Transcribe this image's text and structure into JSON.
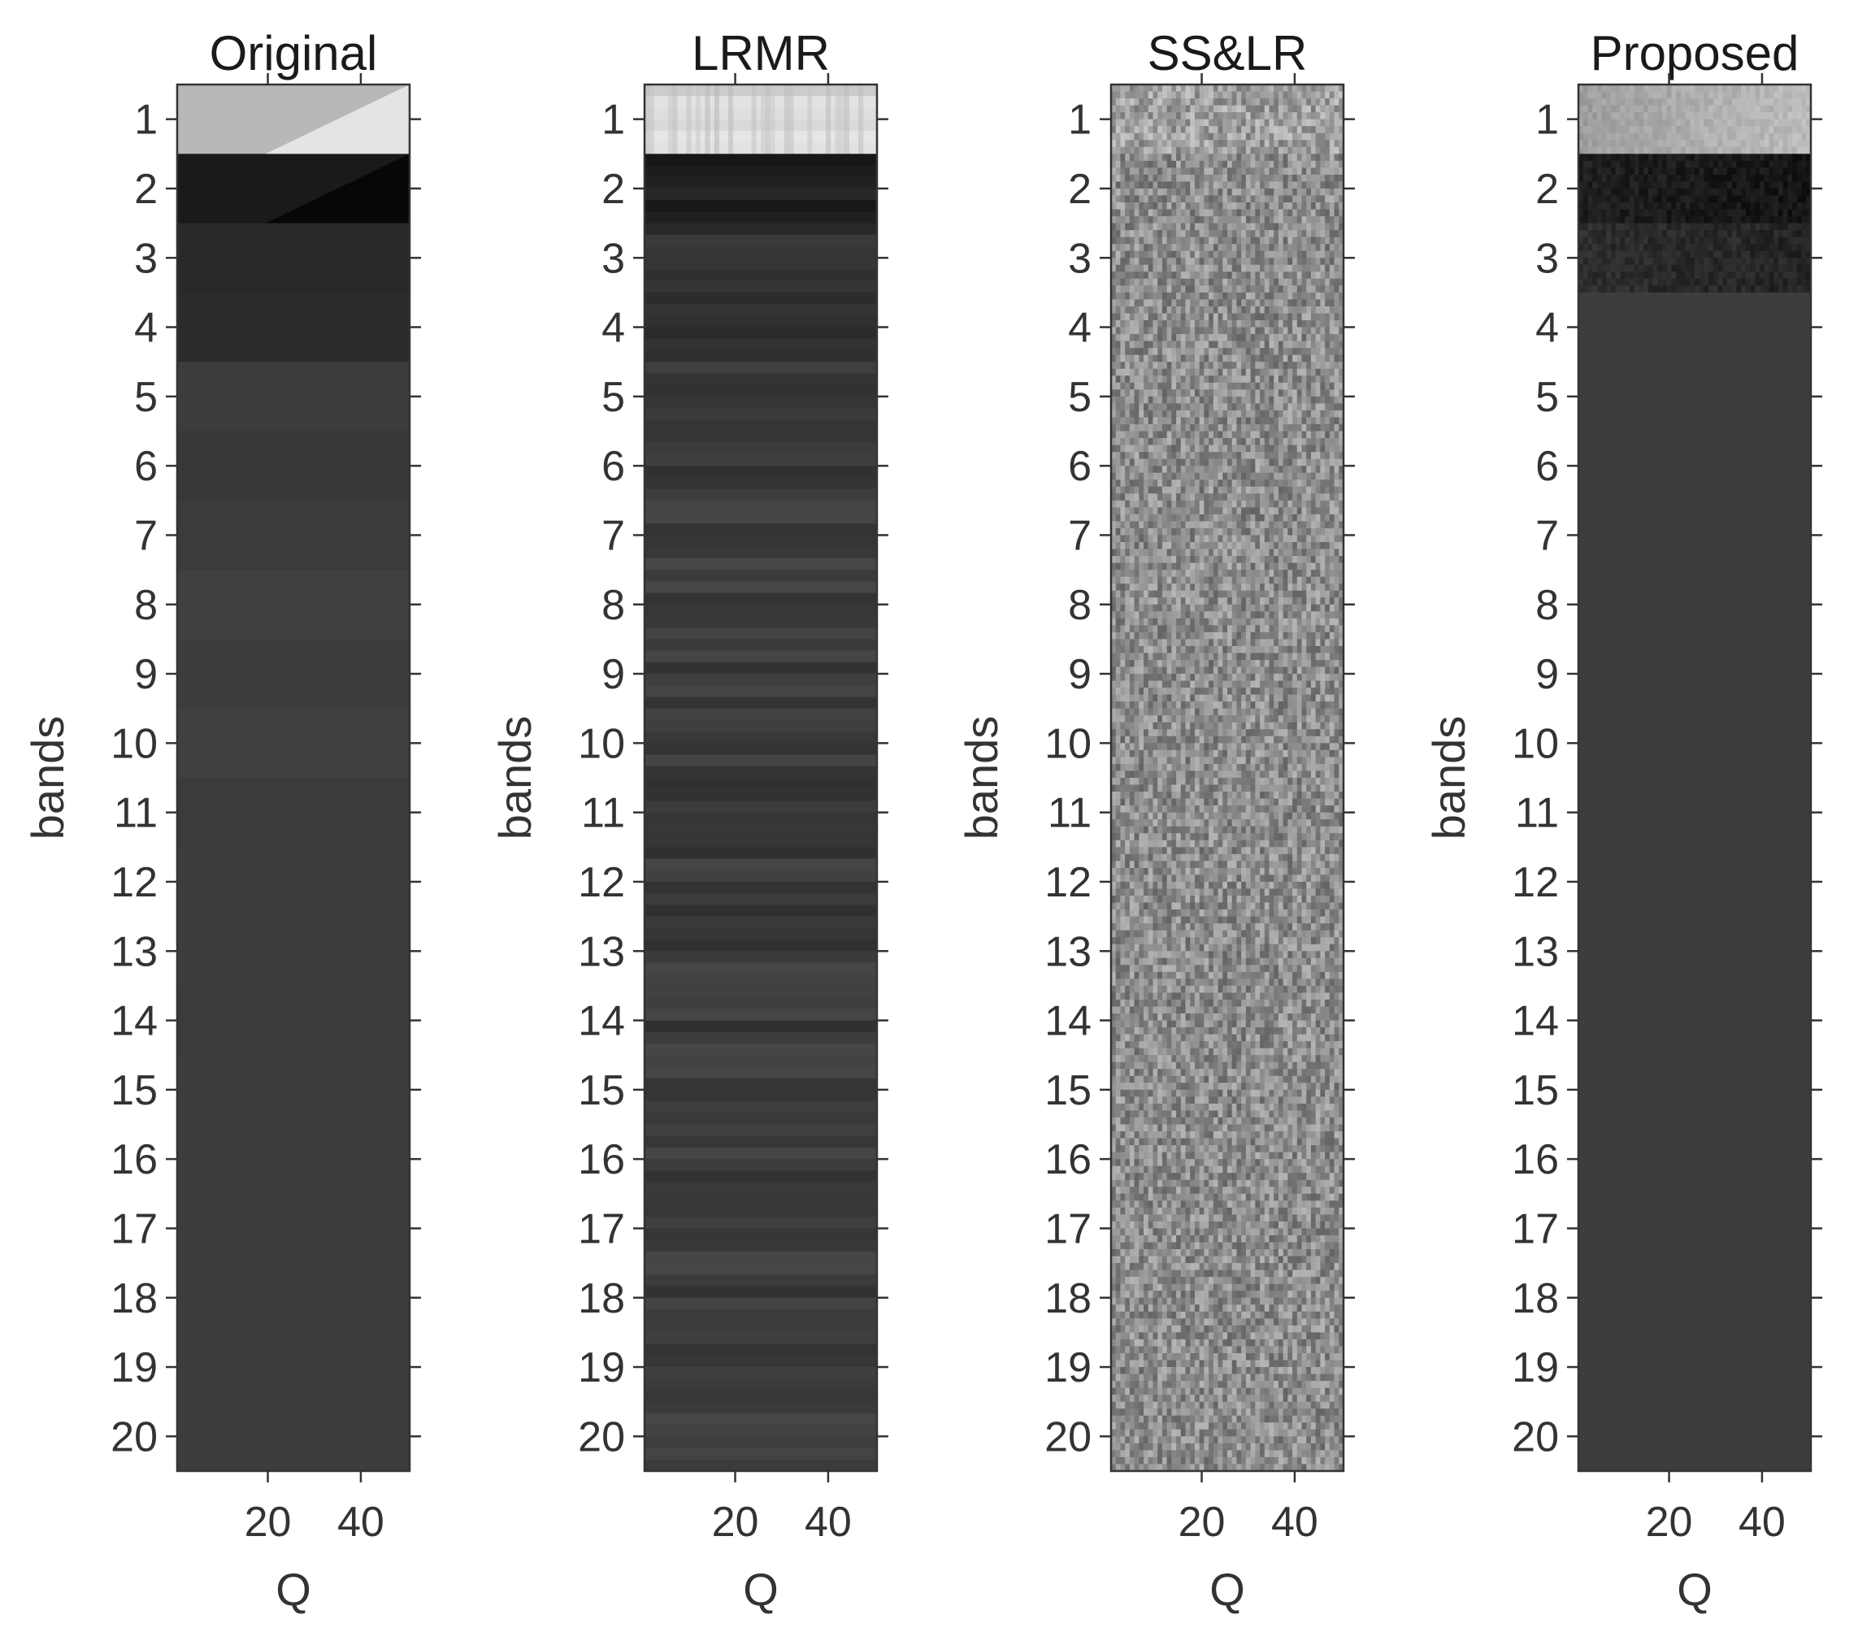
{
  "chart_data": [
    {
      "type": "heatmap",
      "title": "Original",
      "xlabel": "Q",
      "ylabel": "bands",
      "x_ticks": [
        20,
        40
      ],
      "y_ticks": [
        1,
        2,
        3,
        4,
        5,
        6,
        7,
        8,
        9,
        10,
        11,
        12,
        13,
        14,
        15,
        16,
        17,
        18,
        19,
        20
      ],
      "x_range": [
        0.5,
        50.5
      ],
      "y_range": [
        0.5,
        20.5
      ],
      "colormap": "gray",
      "pattern": "smooth",
      "band_intensity": [
        0.72,
        0.1,
        0.16,
        0.17,
        0.24,
        0.22,
        0.23,
        0.25,
        0.24,
        0.25,
        0.23,
        0.24,
        0.24,
        0.23,
        0.24,
        0.24,
        0.24,
        0.24,
        0.24,
        0.24
      ]
    },
    {
      "type": "heatmap",
      "title": "LRMR",
      "xlabel": "Q",
      "ylabel": "bands",
      "x_ticks": [
        20,
        40
      ],
      "y_ticks": [
        1,
        2,
        3,
        4,
        5,
        6,
        7,
        8,
        9,
        10,
        11,
        12,
        13,
        14,
        15,
        16,
        17,
        18,
        19,
        20
      ],
      "x_range": [
        0.5,
        50.5
      ],
      "y_range": [
        0.5,
        20.5
      ],
      "colormap": "gray",
      "pattern": "horizontal-stripes",
      "band_intensity": [
        0.85,
        0.12,
        0.2,
        0.21,
        0.23,
        0.22,
        0.23,
        0.24,
        0.23,
        0.24,
        0.23,
        0.23,
        0.23,
        0.23,
        0.23,
        0.23,
        0.23,
        0.23,
        0.24,
        0.24
      ]
    },
    {
      "type": "heatmap",
      "title": "SS&LR",
      "xlabel": "Q",
      "ylabel": "bands",
      "x_ticks": [
        20,
        40
      ],
      "y_ticks": [
        1,
        2,
        3,
        4,
        5,
        6,
        7,
        8,
        9,
        10,
        11,
        12,
        13,
        14,
        15,
        16,
        17,
        18,
        19,
        20
      ],
      "x_range": [
        0.5,
        50.5
      ],
      "y_range": [
        0.5,
        20.5
      ],
      "colormap": "gray",
      "pattern": "noise",
      "band_intensity": [
        0.62,
        0.55,
        0.55,
        0.55,
        0.55,
        0.55,
        0.55,
        0.55,
        0.55,
        0.55,
        0.55,
        0.55,
        0.55,
        0.55,
        0.55,
        0.55,
        0.55,
        0.55,
        0.55,
        0.55
      ]
    },
    {
      "type": "heatmap",
      "title": "Proposed",
      "xlabel": "Q",
      "ylabel": "bands",
      "x_ticks": [
        20,
        40
      ],
      "y_ticks": [
        1,
        2,
        3,
        4,
        5,
        6,
        7,
        8,
        9,
        10,
        11,
        12,
        13,
        14,
        15,
        16,
        17,
        18,
        19,
        20
      ],
      "x_range": [
        0.5,
        50.5
      ],
      "y_range": [
        0.5,
        20.5
      ],
      "colormap": "gray",
      "pattern": "textured-top",
      "band_intensity": [
        0.62,
        0.12,
        0.18,
        0.24,
        0.24,
        0.24,
        0.24,
        0.24,
        0.24,
        0.24,
        0.24,
        0.24,
        0.24,
        0.24,
        0.24,
        0.24,
        0.24,
        0.24,
        0.24,
        0.24
      ]
    }
  ]
}
